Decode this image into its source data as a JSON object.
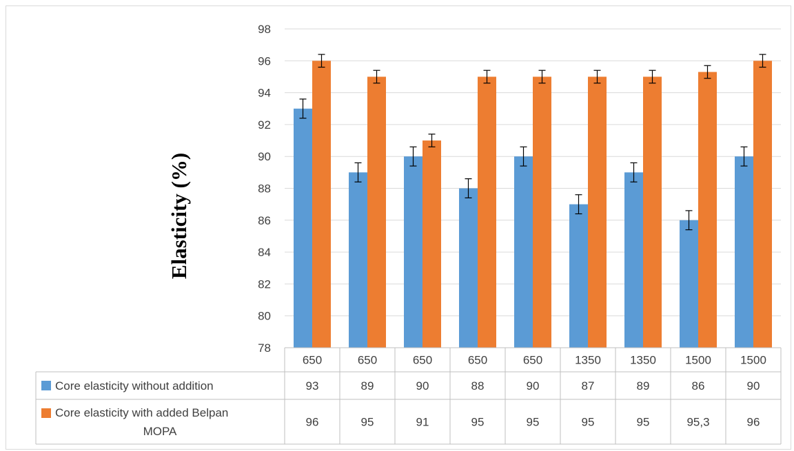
{
  "chart_data": {
    "type": "bar",
    "ylabel": "Elasticity (%)",
    "xlabel": "",
    "ylim": [
      78,
      98
    ],
    "ytick_step": 2,
    "grid": true,
    "legend": "data-table",
    "categories": [
      "650",
      "650",
      "650",
      "650",
      "650",
      "1350",
      "1350",
      "1500",
      "1500"
    ],
    "series": [
      {
        "name": "Core elasticity without addition",
        "color": "#5b9bd5",
        "values": [
          93,
          89,
          90,
          88,
          90,
          87,
          89,
          86,
          90
        ],
        "labels": [
          "93",
          "89",
          "90",
          "88",
          "90",
          "87",
          "89",
          "86",
          "90"
        ],
        "error": [
          0.6,
          0.6,
          0.6,
          0.6,
          0.6,
          0.6,
          0.6,
          0.6,
          0.6
        ]
      },
      {
        "name": "Core elasticity with added Belpan MOPA",
        "color": "#ed7d31",
        "values": [
          96,
          95,
          91,
          95,
          95,
          95,
          95,
          95.3,
          96
        ],
        "labels": [
          "96",
          "95",
          "91",
          "95",
          "95",
          "95",
          "95",
          "95,3",
          "96"
        ],
        "error": [
          0.4,
          0.4,
          0.4,
          0.4,
          0.4,
          0.4,
          0.4,
          0.4,
          0.4
        ]
      }
    ]
  }
}
